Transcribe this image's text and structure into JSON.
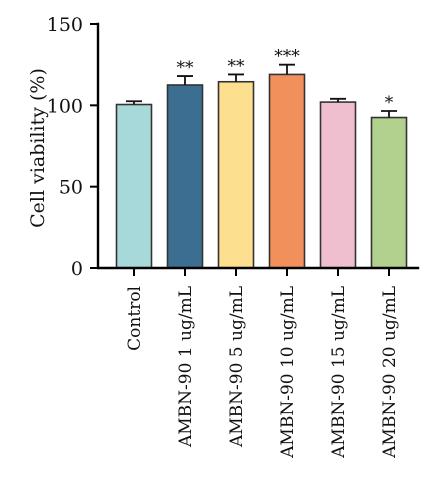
{
  "chart_data": {
    "type": "bar",
    "title": "",
    "xlabel": "",
    "ylabel": "Cell viability (%)",
    "ylim": [
      0,
      150
    ],
    "yticks": [
      0,
      50,
      100,
      150
    ],
    "grid": false,
    "legend": "none",
    "categories": [
      "Control",
      "AMBN-90 1 ug/mL",
      "AMBN-90 5 ug/mL",
      "AMBN-90 10 ug/mL",
      "AMBN-90 15 ug/mL",
      "AMBN-90 20 ug/mL"
    ],
    "values": [
      100.5,
      112.5,
      114.5,
      119.0,
      102.0,
      92.5
    ],
    "errors": [
      2.0,
      5.5,
      4.5,
      6.0,
      2.0,
      4.0
    ],
    "significance": [
      "",
      "**",
      "**",
      "***",
      "",
      "*"
    ],
    "colors": [
      "#a7d9db",
      "#3b6e91",
      "#fce08f",
      "#f2905c",
      "#efbfd0",
      "#b2d18f"
    ]
  }
}
